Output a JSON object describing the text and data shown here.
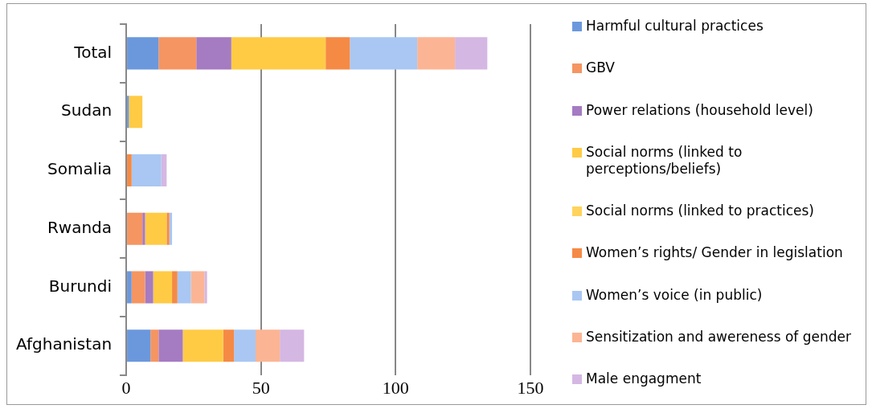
{
  "chart_data": {
    "type": "bar",
    "orientation": "horizontal",
    "stacked": true,
    "categories": [
      "Total",
      "Sudan",
      "Somalia",
      "Rwanda",
      "Burundi",
      "Afghanistan"
    ],
    "series": [
      {
        "name": "Harmful cultural practices",
        "color": "#6b98dc",
        "values": [
          12,
          1,
          0,
          0,
          2,
          9
        ]
      },
      {
        "name": "GBV",
        "color": "#f59562",
        "values": [
          14,
          0,
          0,
          6,
          5,
          3
        ]
      },
      {
        "name": "Power relations (household level)",
        "color": "#a57bc2",
        "values": [
          13,
          0,
          0,
          1,
          3,
          9
        ]
      },
      {
        "name": "Social norms (linked to perceptions/beliefs)",
        "color": "#ffcb45",
        "values": [
          35,
          5,
          0,
          8,
          7,
          15
        ]
      },
      {
        "name": "Social norms (linked to practices)",
        "color": "#ffd35c",
        "values": [
          0,
          0,
          0,
          0,
          0,
          0
        ]
      },
      {
        "name": "Women’s rights/ Gender in legislation",
        "color": "#f58a45",
        "values": [
          9,
          0,
          2,
          1,
          2,
          4
        ]
      },
      {
        "name": "Women’s voice (in public)",
        "color": "#a9c7f2",
        "values": [
          25,
          0,
          11,
          1,
          5,
          8
        ]
      },
      {
        "name": "Sensitization and awereness of gender",
        "color": "#fbb594",
        "values": [
          14,
          0,
          0,
          0,
          5,
          9
        ]
      },
      {
        "name": "Male engagment",
        "color": "#d5b7e3",
        "values": [
          12,
          0,
          2,
          0,
          1,
          9
        ]
      }
    ],
    "xlim": [
      0,
      150
    ],
    "xticks": [
      0,
      50,
      100,
      150
    ],
    "grid": "x",
    "legend": "right"
  }
}
